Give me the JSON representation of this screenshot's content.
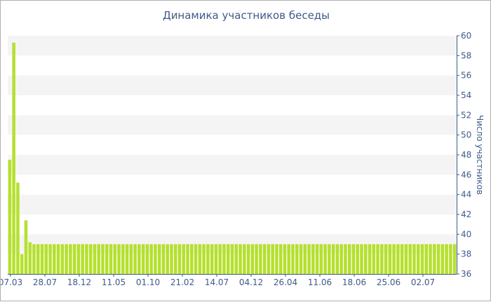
{
  "chart_data": {
    "type": "bar",
    "title": "Динамика участников беседы",
    "ylabel": "Число участников",
    "xlabel": "",
    "ylim": [
      36,
      60
    ],
    "yticks": [
      36,
      38,
      40,
      42,
      44,
      46,
      48,
      50,
      52,
      54,
      56,
      58,
      60
    ],
    "y_axis_position": "right",
    "x_tick_labels": [
      "07.03",
      "28.07",
      "18.12",
      "11.05",
      "01.10",
      "21.02",
      "14.07",
      "04.12",
      "26.04",
      "11.06",
      "18.06",
      "25.06",
      "02.07"
    ],
    "bar_color": "#b5e02d",
    "values": [
      47.5,
      59.3,
      45.2,
      38.0,
      41.4,
      39.2,
      39.0,
      39.0,
      39.0,
      39.0,
      39.0,
      39.0,
      39.0,
      39.0,
      39.0,
      39.0,
      39.0,
      39.0,
      39.0,
      39.0,
      39.0,
      39.0,
      39.0,
      39.0,
      39.0,
      39.0,
      39.0,
      39.0,
      39.0,
      39.0,
      39.0,
      39.0,
      39.0,
      39.0,
      39.0,
      39.0,
      39.0,
      39.0,
      39.0,
      39.0,
      39.0,
      39.0,
      39.0,
      39.0,
      39.0,
      39.0,
      39.0,
      39.0,
      39.0,
      39.0,
      39.0,
      39.0,
      39.0,
      39.0,
      39.0,
      39.0,
      39.0,
      39.0,
      39.0,
      39.0,
      39.0,
      39.0,
      39.0,
      39.0,
      39.0,
      39.0,
      39.0,
      39.0,
      39.0,
      39.0,
      39.0,
      39.0,
      39.0,
      39.0,
      39.0,
      39.0,
      39.0,
      39.0,
      39.0,
      39.0,
      39.0,
      39.0,
      39.0,
      39.0,
      39.0,
      39.0,
      39.0,
      39.0,
      39.0,
      39.0,
      39.0,
      39.0,
      39.0,
      39.0,
      39.0,
      39.0,
      39.0,
      39.0,
      39.0,
      39.0,
      39.0,
      39.0,
      39.0,
      39.0,
      39.0,
      39.0,
      39.0,
      39.0,
      39.0,
      39.0,
      39.0
    ]
  }
}
